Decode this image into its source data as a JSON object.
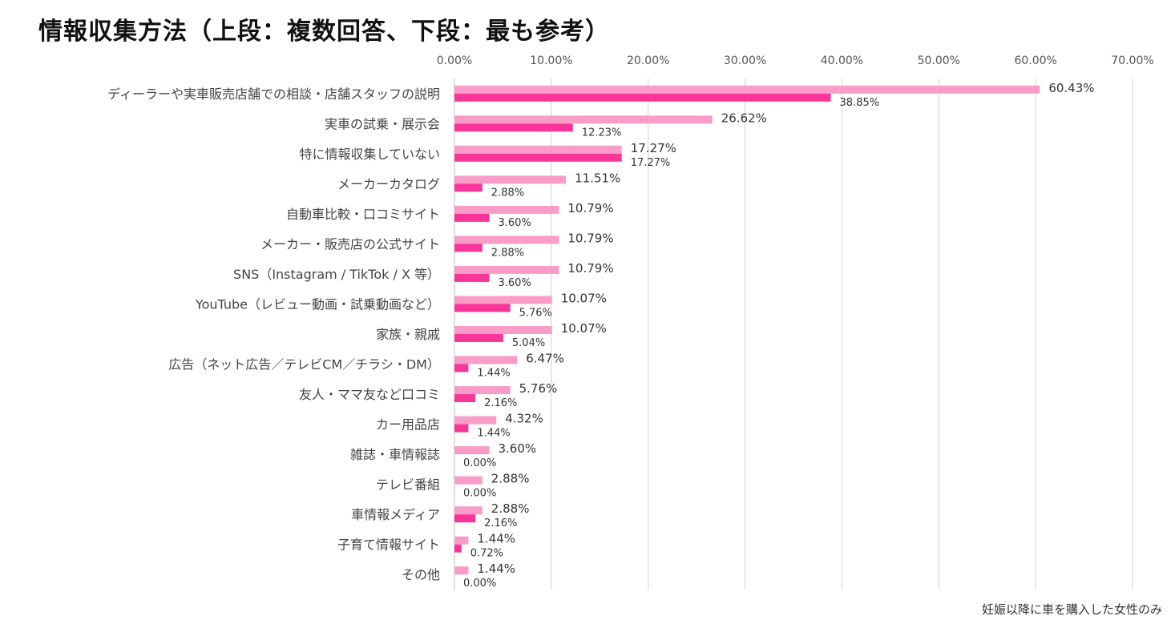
{
  "title": "情報収集方法（上段：複数回答、下段：最も参考）",
  "note": "妊娠以降に車を購入した女性のみ",
  "chart_data": {
    "type": "bar",
    "orientation": "horizontal",
    "title": "情報収集方法（上段：複数回答、下段：最も参考）",
    "xlim": [
      0,
      70
    ],
    "xticks": [
      "0.00%",
      "10.00%",
      "20.00%",
      "30.00%",
      "40.00%",
      "50.00%",
      "60.00%",
      "70.00%"
    ],
    "grid": true,
    "colors": {
      "upper": "#F99CC8",
      "lower": "#F8369A"
    },
    "categories": [
      "ディーラーや実車販売店舗での相談・店舗スタッフの説明",
      "実車の試乗・展示会",
      "特に情報収集していない",
      "メーカーカタログ",
      "自動車比較・口コミサイト",
      "メーカー・販売店の公式サイト",
      "SNS（Instagram / TikTok / X 等）",
      "YouTube（レビュー動画・試乗動画など）",
      "家族・親戚",
      "広告（ネット広告／テレビCM／チラシ・DM）",
      "友人・ママ友など口コミ",
      "カー用品店",
      "雑誌・車情報誌",
      "テレビ番組",
      "車情報メディア",
      "子育て情報サイト",
      "その他"
    ],
    "series": [
      {
        "values": [
          60.43,
          26.62,
          17.27,
          11.51,
          10.79,
          10.79,
          10.79,
          10.07,
          10.07,
          6.47,
          5.76,
          4.32,
          3.6,
          2.88,
          2.88,
          1.44,
          1.44
        ],
        "labels": [
          "60.43%",
          "26.62%",
          "17.27%",
          "11.51%",
          "10.79%",
          "10.79%",
          "10.79%",
          "10.07%",
          "10.07%",
          "6.47%",
          "5.76%",
          "4.32%",
          "3.60%",
          "2.88%",
          "2.88%",
          "1.44%",
          "1.44%"
        ]
      },
      {
        "values": [
          38.85,
          12.23,
          17.27,
          2.88,
          3.6,
          2.88,
          3.6,
          5.76,
          5.04,
          1.44,
          2.16,
          1.44,
          0.0,
          0.0,
          2.16,
          0.72,
          0.0
        ],
        "labels": [
          "38.85%",
          "12.23%",
          "17.27%",
          "2.88%",
          "3.60%",
          "2.88%",
          "3.60%",
          "5.76%",
          "5.04%",
          "1.44%",
          "2.16%",
          "1.44%",
          "0.00%",
          "0.00%",
          "2.16%",
          "0.72%",
          "0.00%"
        ]
      }
    ]
  }
}
